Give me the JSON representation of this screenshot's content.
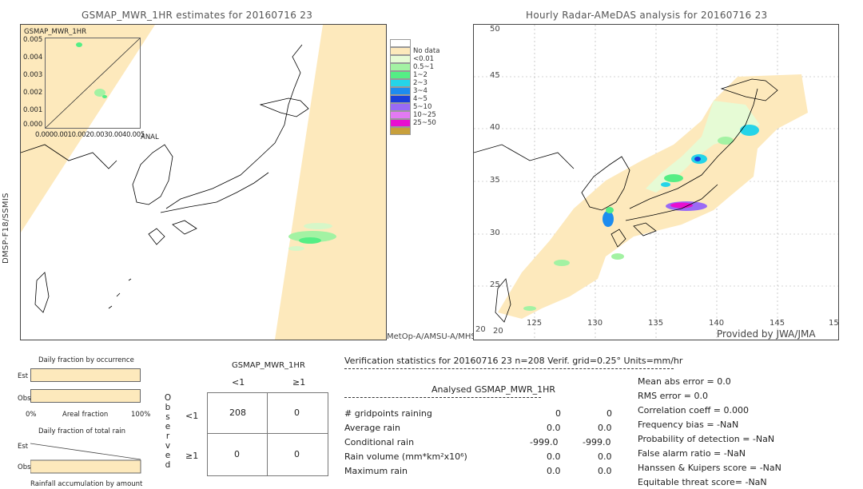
{
  "left_panel": {
    "title": "GSMAP_MWR_1HR estimates for 20160716 23",
    "y_side_label": "DMSP-F18/SSMIS",
    "bottom_right_label": "MetOp-A/AMSU-A/MHS",
    "inset": {
      "label": "GSMAP_MWR_1HR",
      "y_ticks": [
        "0.005",
        "0.004",
        "0.003",
        "0.002",
        "0.001",
        "0.000"
      ],
      "x_ticks_text": "0.0000.0010.0020.0030.0040.005",
      "x_label": "ANAL"
    }
  },
  "right_panel": {
    "title": "Hourly Radar-AMeDAS analysis for 20160716 23",
    "credit": "Provided by JWA/JMA",
    "lat_ticks": [
      "45",
      "40",
      "35",
      "30",
      "25",
      "20"
    ],
    "lon_ticks": [
      "125",
      "130",
      "135",
      "140",
      "145"
    ],
    "corner_lon_left": "20",
    "corner_lon_right": "15",
    "corner_lat_top": "50"
  },
  "legend": {
    "items": [
      {
        "label": "",
        "color": "#ffffff"
      },
      {
        "label": "No data",
        "color": "#fde9bc"
      },
      {
        "label": "<0.01",
        "color": "#e6fbd5"
      },
      {
        "label": "0.5~1",
        "color": "#a3f2a3"
      },
      {
        "label": "1~2",
        "color": "#55ee85"
      },
      {
        "label": "2~3",
        "color": "#25d4e8"
      },
      {
        "label": "3~4",
        "color": "#1d8cef"
      },
      {
        "label": "4~5",
        "color": "#1a3fdc"
      },
      {
        "label": "5~10",
        "color": "#9a6af5"
      },
      {
        "label": "10~25",
        "color": "#e27af2"
      },
      {
        "label": "25~50",
        "color": "#e80fd0"
      },
      {
        "label": "",
        "color": "#c8a03c"
      }
    ]
  },
  "daily": {
    "occ_title": "Daily fraction by occurrence",
    "est": "Est",
    "obs": "Obs",
    "pct0": "0%",
    "areal": "Areal fraction",
    "pct100": "100%",
    "rain_title": "Daily fraction of total rain",
    "est2": "Est",
    "obs2": "Obs",
    "accum_title": "Rainfall accumulation by amount"
  },
  "contingency": {
    "title": "GSMAP_MWR_1HR",
    "col_lt": "<1",
    "col_ge": "≥1",
    "row_lt": "<1",
    "row_ge": "≥1",
    "observed": [
      "O",
      "b",
      "s",
      "e",
      "r",
      "v",
      "e",
      "d"
    ],
    "cells": [
      "208",
      "0",
      "0",
      "0"
    ]
  },
  "verification": {
    "header": "Verification statistics for 20160716 23   n=208   Verif. grid=0.25°   Units=mm/hr",
    "col_analysed": "Analysed",
    "col_gsmap": "GSMAP_MWR_1HR",
    "rows": [
      {
        "label": "# gridpoints raining",
        "a": "0",
        "b": "0"
      },
      {
        "label": "Average rain",
        "a": "0.0",
        "b": "0.0"
      },
      {
        "label": "Conditional rain",
        "a": "-999.0",
        "b": "-999.0"
      },
      {
        "label": "Rain volume (mm*km²x10⁶)",
        "a": "0.0",
        "b": "0.0"
      },
      {
        "label": "Maximum rain",
        "a": "0.0",
        "b": "0.0"
      }
    ],
    "scores": [
      "Mean abs error = 0.0",
      "RMS error = 0.0",
      "Correlation coeff = 0.000",
      "Frequency bias = -NaN",
      "Probability of detection = -NaN",
      "False alarm ratio = -NaN",
      "Hanssen & Kuipers score = -NaN",
      "Equitable threat score= -NaN"
    ]
  }
}
